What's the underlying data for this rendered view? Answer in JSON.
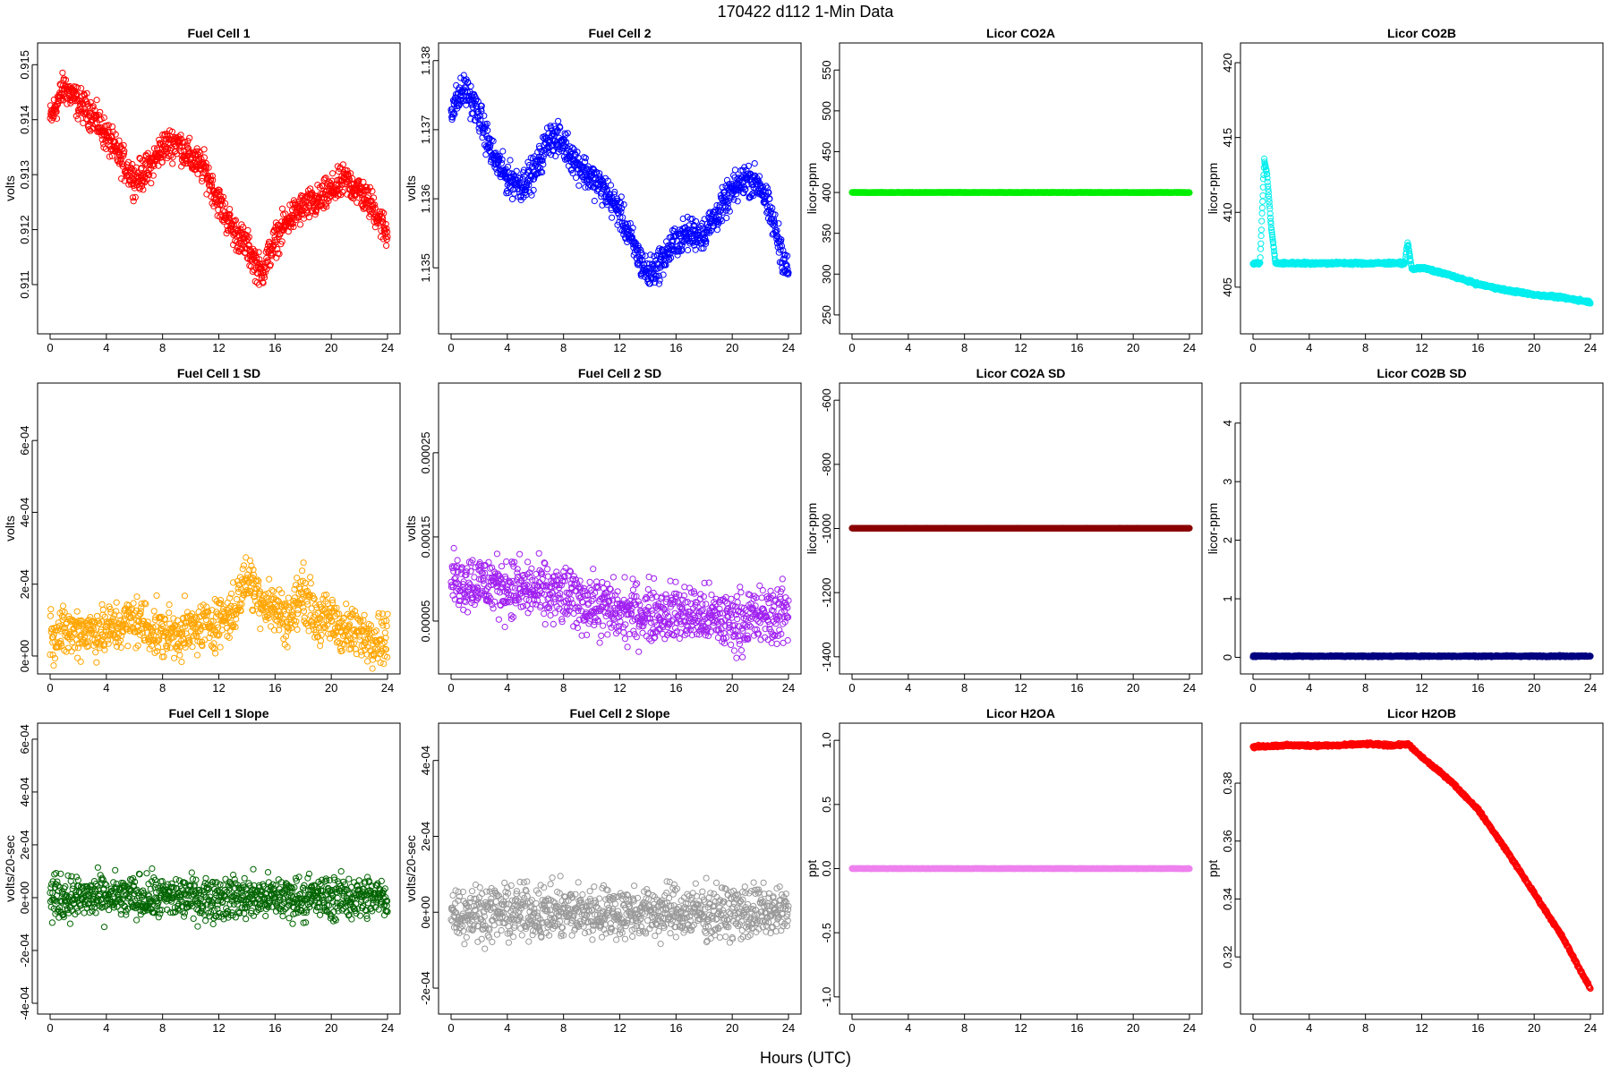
{
  "figure": {
    "suptitle": "170422   d112   1-Min Data",
    "xlabel": "Hours (UTC)"
  },
  "chart_data": [
    {
      "type": "scatter",
      "title": "Fuel Cell 1",
      "ylabel": "volts",
      "color": "#ff0000",
      "xlim": [
        0,
        24
      ],
      "ylim": [
        0.9103,
        0.9152
      ],
      "xticks": [
        "0",
        "4",
        "8",
        "12",
        "16",
        "20",
        "24"
      ],
      "xtick_values": [
        0,
        4,
        8,
        12,
        16,
        20,
        24
      ],
      "yticks": [
        "0.911",
        "0.912",
        "0.913",
        "0.914",
        "0.915"
      ],
      "ytick_values": [
        0.911,
        0.912,
        0.913,
        0.914,
        0.915
      ],
      "x": [
        0,
        1,
        2,
        3,
        4,
        5,
        6,
        7,
        8,
        9,
        10,
        11,
        12,
        13,
        14,
        15,
        16,
        17,
        18,
        19,
        20,
        21,
        22,
        23,
        24
      ],
      "y": [
        0.914,
        0.9146,
        0.9143,
        0.9141,
        0.9137,
        0.9133,
        0.9129,
        0.9131,
        0.9135,
        0.9136,
        0.9133,
        0.9131,
        0.9125,
        0.912,
        0.9117,
        0.9112,
        0.9118,
        0.9122,
        0.9124,
        0.9125,
        0.9127,
        0.9129,
        0.9127,
        0.9124,
        0.9119
      ],
      "spread": 0.00025,
      "density": 44
    },
    {
      "type": "scatter",
      "title": "Fuel Cell 2",
      "ylabel": "volts",
      "color": "#0000ff",
      "xlim": [
        0,
        24
      ],
      "ylim": [
        1.1342,
        1.1381
      ],
      "xticks": [
        "0",
        "4",
        "8",
        "12",
        "16",
        "20",
        "24"
      ],
      "xtick_values": [
        0,
        4,
        8,
        12,
        16,
        20,
        24
      ],
      "yticks": [
        "1.135",
        "1.136",
        "1.137",
        "1.138"
      ],
      "ytick_values": [
        1.135,
        1.136,
        1.137,
        1.138
      ],
      "x": [
        0,
        1,
        2,
        3,
        4,
        5,
        6,
        7,
        8,
        9,
        10,
        11,
        12,
        13,
        14,
        15,
        16,
        17,
        18,
        19,
        20,
        21,
        22,
        23,
        24
      ],
      "y": [
        1.1373,
        1.1376,
        1.1372,
        1.1366,
        1.1363,
        1.1362,
        1.1364,
        1.1369,
        1.1368,
        1.1365,
        1.1363,
        1.1361,
        1.1358,
        1.1353,
        1.1349,
        1.1351,
        1.1354,
        1.1355,
        1.1355,
        1.1358,
        1.1361,
        1.1363,
        1.1362,
        1.1356,
        1.1349
      ],
      "spread": 0.0002,
      "density": 44
    },
    {
      "type": "scatter",
      "title": "Licor CO2A",
      "ylabel": "licor-ppm",
      "color": "#00ee00",
      "xlim": [
        0,
        24
      ],
      "ylim": [
        240,
        570
      ],
      "xticks": [
        "0",
        "4",
        "8",
        "12",
        "16",
        "20",
        "24"
      ],
      "xtick_values": [
        0,
        4,
        8,
        12,
        16,
        20,
        24
      ],
      "yticks": [
        "250",
        "300",
        "350",
        "400",
        "450",
        "500",
        "550"
      ],
      "ytick_values": [
        250,
        300,
        350,
        400,
        450,
        500,
        550
      ],
      "x": [
        0,
        24
      ],
      "y": [
        400,
        400
      ],
      "spread": 0.2,
      "density": 60
    },
    {
      "type": "scatter",
      "title": "Licor CO2B",
      "ylabel": "licor-ppm",
      "color": "#00eeee",
      "xlim": [
        0,
        24
      ],
      "ylim": [
        402.6,
        420.6
      ],
      "xticks": [
        "0",
        "4",
        "8",
        "12",
        "16",
        "20",
        "24"
      ],
      "xtick_values": [
        0,
        4,
        8,
        12,
        16,
        20,
        24
      ],
      "yticks": [
        "405",
        "410",
        "415",
        "420"
      ],
      "ytick_values": [
        405,
        410,
        415,
        420
      ],
      "x": [
        0,
        0.5,
        0.8,
        1.0,
        1.3,
        1.6,
        2,
        4,
        6,
        8,
        10,
        10.8,
        11.0,
        11.3,
        12,
        14,
        16,
        18,
        20,
        22,
        24
      ],
      "y": [
        406.6,
        406.6,
        413.5,
        412.5,
        409,
        406.6,
        406.6,
        406.6,
        406.6,
        406.6,
        406.6,
        406.6,
        408,
        406.2,
        406.3,
        405.8,
        405.2,
        404.8,
        404.5,
        404.3,
        404.0
      ],
      "spread": 0.08,
      "density": 50
    },
    {
      "type": "scatter",
      "title": "Fuel Cell 1 SD",
      "ylabel": "volts",
      "color": "#ffa500",
      "xlim": [
        0,
        24
      ],
      "ylim": [
        -2e-05,
        0.00073
      ],
      "xticks": [
        "0",
        "4",
        "8",
        "12",
        "16",
        "20",
        "24"
      ],
      "xtick_values": [
        0,
        4,
        8,
        12,
        16,
        20,
        24
      ],
      "yticks": [
        "0e+00",
        "2e-04",
        "4e-04",
        "6e-04"
      ],
      "ytick_values": [
        0,
        0.0002,
        0.0004,
        0.0006
      ],
      "x": [
        0,
        2,
        4,
        6,
        8,
        10,
        12,
        13,
        14,
        15,
        16,
        17,
        18,
        19,
        20,
        21,
        22,
        24
      ],
      "y": [
        6e-05,
        7e-05,
        7e-05,
        0.0001,
        6e-05,
        7e-05,
        0.0001,
        0.00012,
        0.00022,
        0.00016,
        0.00013,
        0.0001,
        0.00018,
        0.0001,
        0.0001,
        7e-05,
        6e-05,
        5e-05
      ],
      "spread": 6e-05,
      "density": 40
    },
    {
      "type": "scatter",
      "title": "Fuel Cell 2 SD",
      "ylabel": "volts",
      "color": "#a020f0",
      "xlim": [
        0,
        24
      ],
      "ylim": [
        0.0,
        0.00032
      ],
      "xticks": [
        "0",
        "4",
        "8",
        "12",
        "16",
        "20",
        "24"
      ],
      "xtick_values": [
        0,
        4,
        8,
        12,
        16,
        20,
        24
      ],
      "yticks": [
        "0.00005",
        "0.00015",
        "0.00025"
      ],
      "ytick_values": [
        5e-05,
        0.00015,
        0.00025
      ],
      "x": [
        0,
        4,
        8,
        12,
        16,
        20,
        24
      ],
      "y": [
        0.0001,
        9e-05,
        8e-05,
        6e-05,
        6e-05,
        5e-05,
        6e-05
      ],
      "spread": 3e-05,
      "density": 40
    },
    {
      "type": "scatter",
      "title": "Licor CO2A SD",
      "ylabel": "licor-ppm",
      "color": "#8b0000",
      "xlim": [
        0,
        24
      ],
      "ylim": [
        -1420,
        -580
      ],
      "xticks": [
        "0",
        "4",
        "8",
        "12",
        "16",
        "20",
        "24"
      ],
      "xtick_values": [
        0,
        4,
        8,
        12,
        16,
        20,
        24
      ],
      "yticks": [
        "-1400",
        "-1200",
        "-1000",
        "-800",
        "-600"
      ],
      "ytick_values": [
        -1400,
        -1200,
        -1000,
        -800,
        -600
      ],
      "x": [
        0,
        24
      ],
      "y": [
        -999,
        -999
      ],
      "spread": 0.2,
      "density": 60
    },
    {
      "type": "scatter",
      "title": "Licor CO2B SD",
      "ylabel": "licor-ppm",
      "color": "#000080",
      "xlim": [
        0,
        24
      ],
      "ylim": [
        -0.1,
        4.5
      ],
      "xticks": [
        "0",
        "4",
        "8",
        "12",
        "16",
        "20",
        "24"
      ],
      "xtick_values": [
        0,
        4,
        8,
        12,
        16,
        20,
        24
      ],
      "yticks": [
        "0",
        "1",
        "2",
        "3",
        "4"
      ],
      "ytick_values": [
        0,
        1,
        2,
        3,
        4
      ],
      "x": [
        0,
        24
      ],
      "y": [
        0.02,
        0.02
      ],
      "spread": 0.01,
      "density": 50
    },
    {
      "type": "scatter",
      "title": "Fuel Cell 1 Slope",
      "ylabel": "volts/20-sec",
      "color": "#006400",
      "xlim": [
        0,
        24
      ],
      "ylim": [
        -0.0004,
        0.00062
      ],
      "xticks": [
        "0",
        "4",
        "8",
        "12",
        "16",
        "20",
        "24"
      ],
      "xtick_values": [
        0,
        4,
        8,
        12,
        16,
        20,
        24
      ],
      "yticks": [
        "-4e-04",
        "-2e-04",
        "0e+00",
        "2e-04",
        "4e-04",
        "6e-04"
      ],
      "ytick_values": [
        -0.0004,
        -0.0002,
        0,
        0.0002,
        0.0004,
        0.0006
      ],
      "x": [
        0,
        24
      ],
      "y": [
        0,
        0
      ],
      "spread": 7e-05,
      "density": 40
    },
    {
      "type": "scatter",
      "title": "Fuel Cell 2 Slope",
      "ylabel": "volts/20-sec",
      "color": "#999999",
      "xlim": [
        0,
        24
      ],
      "ylim": [
        -0.00024,
        0.00047
      ],
      "xticks": [
        "0",
        "4",
        "8",
        "12",
        "16",
        "20",
        "24"
      ],
      "xtick_values": [
        0,
        4,
        8,
        12,
        16,
        20,
        24
      ],
      "yticks": [
        "-2e-04",
        "0e+00",
        "2e-04",
        "4e-04"
      ],
      "ytick_values": [
        -0.0002,
        0,
        0.0002,
        0.0004
      ],
      "x": [
        0,
        24
      ],
      "y": [
        0,
        0
      ],
      "spread": 6e-05,
      "density": 40
    },
    {
      "type": "scatter",
      "title": "Licor H2OA",
      "ylabel": "ppt",
      "color": "#ee82ee",
      "xlim": [
        0,
        24
      ],
      "ylim": [
        -1.05,
        1.05
      ],
      "xticks": [
        "0",
        "4",
        "8",
        "12",
        "16",
        "20",
        "24"
      ],
      "xtick_values": [
        0,
        4,
        8,
        12,
        16,
        20,
        24
      ],
      "yticks": [
        "-1.0",
        "-0.5",
        "0.0",
        "0.5",
        "1.0"
      ],
      "ytick_values": [
        -1,
        -0.5,
        0,
        0.5,
        1
      ],
      "x": [
        0,
        24
      ],
      "y": [
        0,
        0
      ],
      "spread": 0.001,
      "density": 60
    },
    {
      "type": "scatter",
      "title": "Licor H2OB",
      "ylabel": "ppt",
      "color": "#ff0000",
      "xlim": [
        0,
        24
      ],
      "ylim": [
        0.304,
        0.397
      ],
      "xticks": [
        "0",
        "4",
        "8",
        "12",
        "16",
        "20",
        "24"
      ],
      "xtick_values": [
        0,
        4,
        8,
        12,
        16,
        20,
        24
      ],
      "yticks": [
        "0.32",
        "0.34",
        "0.36",
        "0.38"
      ],
      "ytick_values": [
        0.32,
        0.34,
        0.36,
        0.38
      ],
      "x": [
        0,
        2,
        4,
        6,
        8,
        10,
        11,
        12,
        14,
        16,
        18,
        20,
        22,
        24
      ],
      "y": [
        0.3925,
        0.393,
        0.393,
        0.393,
        0.3935,
        0.393,
        0.3935,
        0.389,
        0.381,
        0.371,
        0.357,
        0.342,
        0.327,
        0.309
      ],
      "spread": 0.0004,
      "density": 40
    }
  ]
}
